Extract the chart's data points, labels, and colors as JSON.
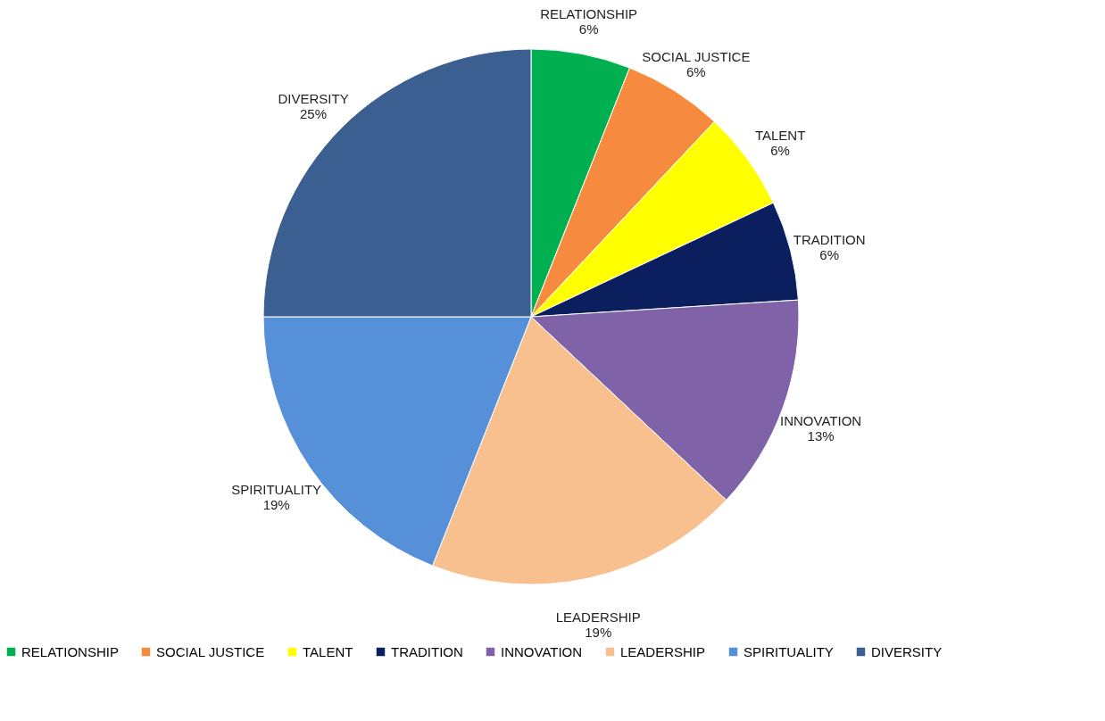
{
  "chart_data": {
    "type": "pie",
    "categories": [
      "RELATIONSHIP",
      "SOCIAL JUSTICE",
      "TALENT",
      "TRADITION",
      "INNOVATION",
      "LEADERSHIP",
      "SPIRITUALITY",
      "DIVERSITY"
    ],
    "values": [
      6,
      6,
      6,
      6,
      13,
      19,
      19,
      25
    ],
    "value_labels": [
      "6%",
      "6%",
      "6%",
      "6%",
      "13%",
      "19%",
      "19%",
      "25%"
    ],
    "colors": [
      "#00b050",
      "#f68b3f",
      "#ffff00",
      "#0b1f5e",
      "#7f62a8",
      "#f9c08f",
      "#5590d8",
      "#3b5f91"
    ],
    "legend": "bottom"
  }
}
